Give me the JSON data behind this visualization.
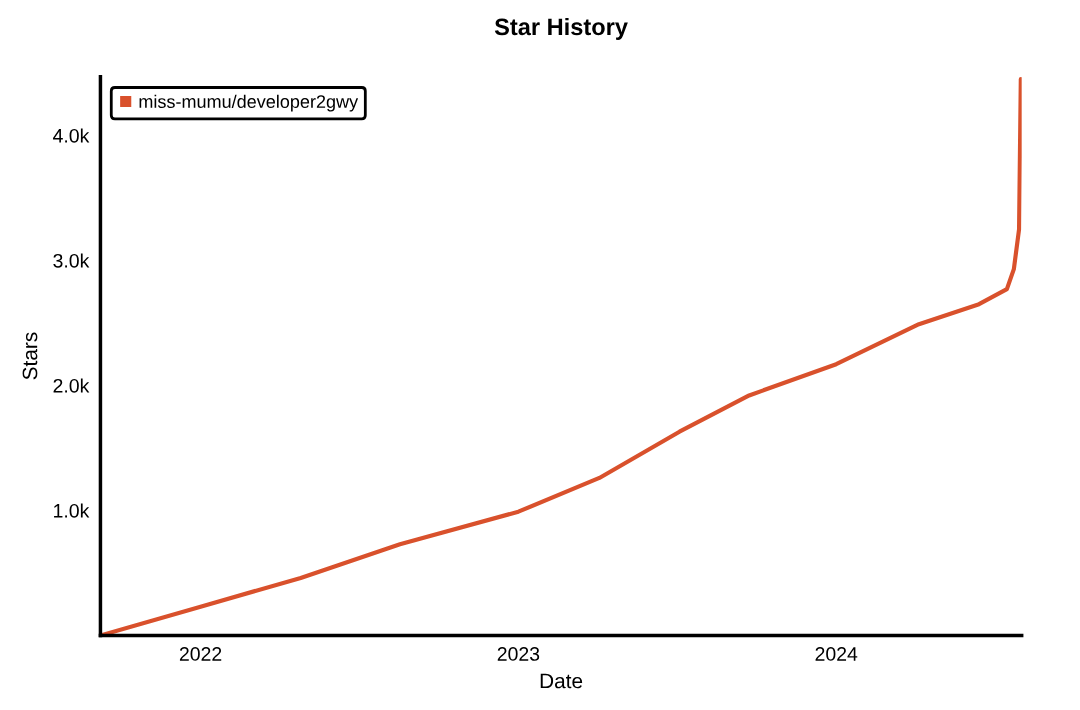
{
  "chart_data": {
    "type": "line",
    "title": "Star History",
    "xlabel": "Date",
    "ylabel": "Stars",
    "x": [
      "2021-09-08",
      "2022-01-01",
      "2022-04-26",
      "2022-08-18",
      "2023-01-01",
      "2023-04-04",
      "2023-07-05",
      "2023-09-23",
      "2024-01-01",
      "2024-04-05",
      "2024-06-13",
      "2024-07-15",
      "2024-07-23",
      "2024-07-29",
      "2024-07-31"
    ],
    "series": [
      {
        "name": "miss-mumu/developer2gwy",
        "color": "#d9512c",
        "values": [
          0,
          230,
          460,
          730,
          990,
          1260,
          1630,
          1920,
          2170,
          2490,
          2650,
          2770,
          2930,
          3250,
          4450
        ]
      }
    ],
    "xlim": [
      "2021-09-08",
      "2024-08-01"
    ],
    "xticks": [
      "2022",
      "2023",
      "2024"
    ],
    "ylim": [
      0,
      4470
    ],
    "yticks": [
      {
        "value": 1000,
        "label": "1.0k"
      },
      {
        "value": 2000,
        "label": "2.0k"
      },
      {
        "value": 3000,
        "label": "3.0k"
      },
      {
        "value": 4000,
        "label": "4.0k"
      }
    ],
    "grid": false,
    "legend": "top left",
    "marker": "none",
    "line_style": "solid"
  }
}
